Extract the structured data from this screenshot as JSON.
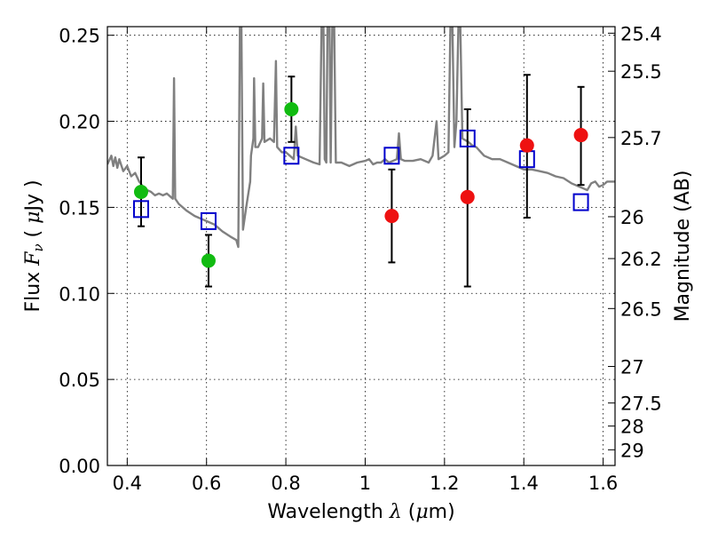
{
  "chart_data": {
    "type": "scatter",
    "xlabel": "Wavelength  λ (μm)",
    "ylabel": "Flux  Fν  ( μJy )",
    "ylabel2": "Magnitude (AB)",
    "xlim": [
      0.35,
      1.63
    ],
    "ylim": [
      0.0,
      0.255
    ],
    "grid": true,
    "x_ticks": [
      {
        "v": 0.4,
        "label": "0.4"
      },
      {
        "v": 0.6,
        "label": "0.6"
      },
      {
        "v": 0.8,
        "label": "0.8"
      },
      {
        "v": 1.0,
        "label": "1"
      },
      {
        "v": 1.2,
        "label": "1.2"
      },
      {
        "v": 1.4,
        "label": "1.4"
      },
      {
        "v": 1.6,
        "label": "1.6"
      }
    ],
    "y_ticks": [
      {
        "v": 0.0,
        "label": "0.00"
      },
      {
        "v": 0.05,
        "label": "0.05"
      },
      {
        "v": 0.1,
        "label": "0.10"
      },
      {
        "v": 0.15,
        "label": "0.15"
      },
      {
        "v": 0.2,
        "label": "0.20"
      },
      {
        "v": 0.25,
        "label": "0.25"
      }
    ],
    "mag_ticks": [
      {
        "v": 25.4,
        "label": "25.4"
      },
      {
        "v": 25.5,
        "label": "25.5"
      },
      {
        "v": 25.7,
        "label": "25.7"
      },
      {
        "v": 26.0,
        "label": "26"
      },
      {
        "v": 26.2,
        "label": "26.2"
      },
      {
        "v": 26.5,
        "label": "26.5"
      },
      {
        "v": 27.0,
        "label": "27"
      },
      {
        "v": 27.5,
        "label": "27.5"
      },
      {
        "v": 28.0,
        "label": "28"
      },
      {
        "v": 29.0,
        "label": "29"
      }
    ],
    "observed_green": [
      {
        "x": 0.435,
        "y": 0.159,
        "yerr_low": 0.139,
        "yerr_high": 0.179
      },
      {
        "x": 0.605,
        "y": 0.119,
        "yerr_low": 0.104,
        "yerr_high": 0.134
      },
      {
        "x": 0.814,
        "y": 0.207,
        "yerr_low": 0.188,
        "yerr_high": 0.226
      }
    ],
    "observed_red": [
      {
        "x": 1.067,
        "y": 0.145,
        "yerr_low": 0.118,
        "yerr_high": 0.172
      },
      {
        "x": 1.258,
        "y": 0.156,
        "yerr_low": 0.104,
        "yerr_high": 0.207
      },
      {
        "x": 1.408,
        "y": 0.186,
        "yerr_low": 0.144,
        "yerr_high": 0.227
      },
      {
        "x": 1.544,
        "y": 0.192,
        "yerr_low": 0.163,
        "yerr_high": 0.22
      }
    ],
    "model_boxes": [
      {
        "x": 0.435,
        "y": 0.149
      },
      {
        "x": 0.605,
        "y": 0.142
      },
      {
        "x": 0.814,
        "y": 0.18
      },
      {
        "x": 1.067,
        "y": 0.18
      },
      {
        "x": 1.258,
        "y": 0.19
      },
      {
        "x": 1.408,
        "y": 0.178
      },
      {
        "x": 1.544,
        "y": 0.153
      }
    ],
    "model_spectrum": [
      [
        0.35,
        0.175
      ],
      [
        0.36,
        0.18
      ],
      [
        0.365,
        0.174
      ],
      [
        0.37,
        0.179
      ],
      [
        0.375,
        0.173
      ],
      [
        0.38,
        0.178
      ],
      [
        0.39,
        0.171
      ],
      [
        0.4,
        0.174
      ],
      [
        0.41,
        0.168
      ],
      [
        0.42,
        0.17
      ],
      [
        0.43,
        0.165
      ],
      [
        0.44,
        0.162
      ],
      [
        0.45,
        0.16
      ],
      [
        0.46,
        0.159
      ],
      [
        0.47,
        0.157
      ],
      [
        0.48,
        0.158
      ],
      [
        0.49,
        0.157
      ],
      [
        0.5,
        0.158
      ],
      [
        0.51,
        0.156
      ],
      [
        0.515,
        0.155
      ],
      [
        0.518,
        0.225
      ],
      [
        0.521,
        0.155
      ],
      [
        0.53,
        0.152
      ],
      [
        0.55,
        0.148
      ],
      [
        0.57,
        0.145
      ],
      [
        0.6,
        0.142
      ],
      [
        0.62,
        0.14
      ],
      [
        0.64,
        0.136
      ],
      [
        0.66,
        0.133
      ],
      [
        0.675,
        0.131
      ],
      [
        0.68,
        0.127
      ],
      [
        0.684,
        0.255
      ],
      [
        0.688,
        0.255
      ],
      [
        0.692,
        0.137
      ],
      [
        0.7,
        0.15
      ],
      [
        0.71,
        0.165
      ],
      [
        0.712,
        0.18
      ],
      [
        0.718,
        0.19
      ],
      [
        0.72,
        0.225
      ],
      [
        0.723,
        0.185
      ],
      [
        0.73,
        0.185
      ],
      [
        0.74,
        0.19
      ],
      [
        0.743,
        0.222
      ],
      [
        0.746,
        0.188
      ],
      [
        0.76,
        0.19
      ],
      [
        0.77,
        0.188
      ],
      [
        0.775,
        0.235
      ],
      [
        0.778,
        0.185
      ],
      [
        0.79,
        0.182
      ],
      [
        0.8,
        0.182
      ],
      [
        0.81,
        0.18
      ],
      [
        0.82,
        0.178
      ],
      [
        0.825,
        0.197
      ],
      [
        0.83,
        0.18
      ],
      [
        0.85,
        0.178
      ],
      [
        0.87,
        0.176
      ],
      [
        0.885,
        0.175
      ],
      [
        0.89,
        0.255
      ],
      [
        0.895,
        0.255
      ],
      [
        0.898,
        0.178
      ],
      [
        0.902,
        0.176
      ],
      [
        0.905,
        0.255
      ],
      [
        0.91,
        0.255
      ],
      [
        0.913,
        0.176
      ],
      [
        0.917,
        0.255
      ],
      [
        0.922,
        0.255
      ],
      [
        0.926,
        0.176
      ],
      [
        0.94,
        0.176
      ],
      [
        0.96,
        0.174
      ],
      [
        0.98,
        0.176
      ],
      [
        1.0,
        0.177
      ],
      [
        1.01,
        0.178
      ],
      [
        1.02,
        0.175
      ],
      [
        1.03,
        0.176
      ],
      [
        1.04,
        0.176
      ],
      [
        1.05,
        0.178
      ],
      [
        1.06,
        0.176
      ],
      [
        1.08,
        0.178
      ],
      [
        1.085,
        0.193
      ],
      [
        1.09,
        0.178
      ],
      [
        1.1,
        0.177
      ],
      [
        1.12,
        0.177
      ],
      [
        1.14,
        0.178
      ],
      [
        1.16,
        0.176
      ],
      [
        1.17,
        0.18
      ],
      [
        1.18,
        0.2
      ],
      [
        1.185,
        0.178
      ],
      [
        1.2,
        0.18
      ],
      [
        1.21,
        0.182
      ],
      [
        1.215,
        0.255
      ],
      [
        1.22,
        0.255
      ],
      [
        1.225,
        0.185
      ],
      [
        1.23,
        0.2
      ],
      [
        1.235,
        0.255
      ],
      [
        1.24,
        0.255
      ],
      [
        1.245,
        0.19
      ],
      [
        1.26,
        0.188
      ],
      [
        1.27,
        0.186
      ],
      [
        1.28,
        0.185
      ],
      [
        1.3,
        0.18
      ],
      [
        1.32,
        0.178
      ],
      [
        1.34,
        0.178
      ],
      [
        1.36,
        0.176
      ],
      [
        1.38,
        0.174
      ],
      [
        1.4,
        0.172
      ],
      [
        1.42,
        0.172
      ],
      [
        1.44,
        0.171
      ],
      [
        1.46,
        0.17
      ],
      [
        1.48,
        0.168
      ],
      [
        1.5,
        0.167
      ],
      [
        1.52,
        0.164
      ],
      [
        1.54,
        0.162
      ],
      [
        1.56,
        0.16
      ],
      [
        1.57,
        0.164
      ],
      [
        1.58,
        0.165
      ],
      [
        1.59,
        0.162
      ],
      [
        1.6,
        0.163
      ],
      [
        1.61,
        0.165
      ],
      [
        1.63,
        0.165
      ]
    ],
    "colors": {
      "green": "#11bb11",
      "red": "#ee1111",
      "box": "#0000cc",
      "spectrum": "#808080",
      "errorbar": "#000000"
    }
  }
}
